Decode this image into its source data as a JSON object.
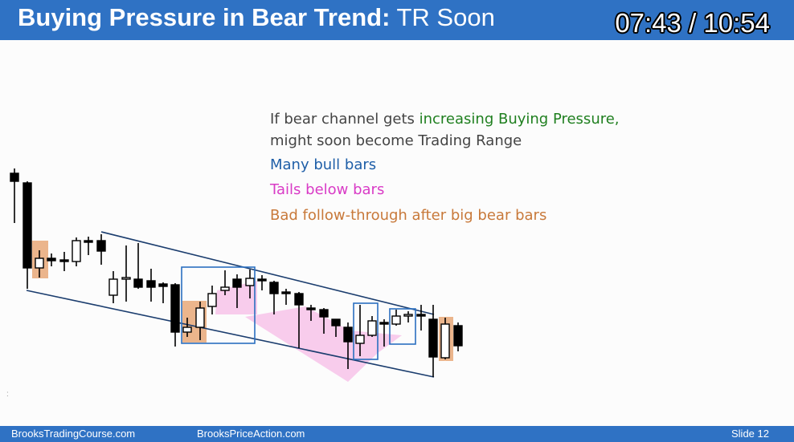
{
  "header": {
    "title_bold": "Buying Pressure in Bear Trend:",
    "title_rest": " TR Soon",
    "timer": "07:43 / 10:54"
  },
  "body_text": {
    "line1_prefix": "If bear channel gets ",
    "line1_highlight": "increasing Buying Pressure,",
    "line2": "might soon become Trading Range",
    "line3": "Many bull bars",
    "line4": "Tails below bars",
    "line5": "Bad follow-through after big bear bars"
  },
  "footer": {
    "left": "BrooksTradingCourse.com",
    "middle": "BrooksPriceAction.com",
    "right": "Slide  12"
  },
  "colors": {
    "header_bg": "#2f72c4",
    "buying_pressure": "#1f7f1f",
    "bull_bars": "#1f5fa8",
    "tails": "#d93bc6",
    "follow_through": "#c8793a"
  }
}
